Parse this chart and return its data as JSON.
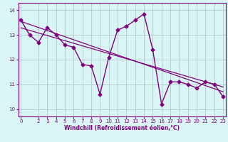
{
  "xlabel": "Windchill (Refroidissement éolien,°C)",
  "x_values": [
    0,
    1,
    2,
    3,
    4,
    5,
    6,
    7,
    8,
    9,
    10,
    11,
    12,
    13,
    14,
    15,
    16,
    17,
    18,
    19,
    20,
    21,
    22,
    23
  ],
  "main_line": [
    13.6,
    13.0,
    12.7,
    13.3,
    13.0,
    12.6,
    12.5,
    11.8,
    11.75,
    10.6,
    12.1,
    13.2,
    13.35,
    13.6,
    13.85,
    12.4,
    10.2,
    11.1,
    11.1,
    11.0,
    10.85,
    11.1,
    11.0,
    10.5
  ],
  "line_color": "#800080",
  "bg_color": "#d9f5f5",
  "grid_color": "#b0c8c8",
  "ylim": [
    9.7,
    14.3
  ],
  "xlim": [
    -0.3,
    23.3
  ],
  "yticks": [
    10,
    11,
    12,
    13,
    14
  ],
  "xticks": [
    0,
    2,
    3,
    4,
    5,
    6,
    7,
    8,
    9,
    10,
    11,
    12,
    13,
    14,
    15,
    16,
    17,
    18,
    19,
    20,
    21,
    22,
    23
  ],
  "tick_fontsize": 5.0,
  "xlabel_fontsize": 5.5,
  "marker_size": 2.5
}
